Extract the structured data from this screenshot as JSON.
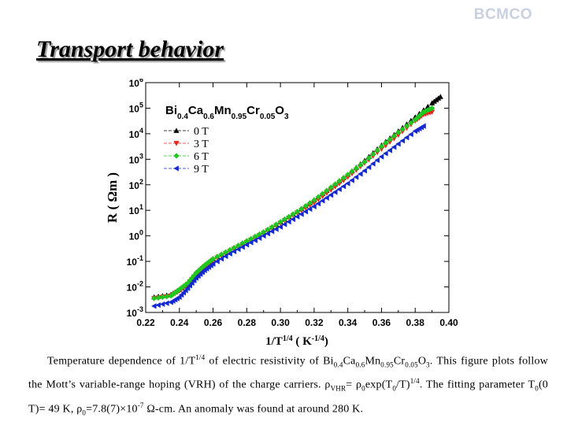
{
  "brand": "BCMCO",
  "slide_title": "Transport behavior",
  "caption": {
    "parts": [
      {
        "t": "Temperature dependence of 1/T"
      },
      {
        "t": "1/4",
        "f": "sup"
      },
      {
        "t": " of electric resistivity of Bi"
      },
      {
        "t": "0.4",
        "f": "sub"
      },
      {
        "t": "Ca"
      },
      {
        "t": "0.6",
        "f": "sub"
      },
      {
        "t": "Mn"
      },
      {
        "t": "0.95",
        "f": "sub"
      },
      {
        "t": "Cr"
      },
      {
        "t": "0.05",
        "f": "sub"
      },
      {
        "t": "O"
      },
      {
        "t": "3",
        "f": "sub"
      },
      {
        "t": ". This figure plots follow the Mott’s variable-range hoping (VRH) of the charge carriers. ρ"
      },
      {
        "t": "VHR",
        "f": "sub"
      },
      {
        "t": "= ρ"
      },
      {
        "t": "0",
        "f": "sub"
      },
      {
        "t": "exp(T"
      },
      {
        "t": "0",
        "f": "sub"
      },
      {
        "t": "/T)"
      },
      {
        "t": "1/4",
        "f": "sup"
      },
      {
        "t": ". The fitting parameter T"
      },
      {
        "t": "0",
        "f": "sub"
      },
      {
        "t": "(0 T)= 49 K, ρ"
      },
      {
        "t": "0",
        "f": "sub"
      },
      {
        "t": "=7.8(7)×10"
      },
      {
        "t": "-7",
        "f": "sup"
      },
      {
        "t": " Ω-cm. An anomaly was found at around 280 K."
      }
    ]
  },
  "chart_data": {
    "type": "scatter",
    "title_parts": [
      {
        "t": "Bi"
      },
      {
        "t": "0.4",
        "f": "sub"
      },
      {
        "t": "Ca"
      },
      {
        "t": "0.6",
        "f": "sub"
      },
      {
        "t": "Mn"
      },
      {
        "t": "0.95",
        "f": "sub"
      },
      {
        "t": "Cr"
      },
      {
        "t": "0.05",
        "f": "sub"
      },
      {
        "t": "O"
      },
      {
        "t": "3",
        "f": "sub"
      }
    ],
    "xlabel_parts": [
      {
        "t": "1/T"
      },
      {
        "t": "1/4",
        "f": "sup"
      },
      {
        "t": " ( K"
      },
      {
        "t": "-1/4",
        "f": "sup"
      },
      {
        "t": ")"
      }
    ],
    "ylabel_parts": [
      {
        "t": "R"
      },
      {
        "t": " ( "
      },
      {
        "t": "Ω"
      },
      {
        "t": "m"
      },
      {
        "t": " )"
      }
    ],
    "x_ticks": [
      "0.22",
      "0.24",
      "0.26",
      "0.28",
      "0.30",
      "0.32",
      "0.34",
      "0.36",
      "0.38",
      "0.40"
    ],
    "y_ticks": [
      {
        "base": "10",
        "exp": "-3"
      },
      {
        "base": "10",
        "exp": "-2"
      },
      {
        "base": "10",
        "exp": "-1"
      },
      {
        "base": "10",
        "exp": "0"
      },
      {
        "base": "10",
        "exp": "1"
      },
      {
        "base": "10",
        "exp": "2"
      },
      {
        "base": "10",
        "exp": "3"
      },
      {
        "base": "10",
        "exp": "4"
      },
      {
        "base": "10",
        "exp": "5"
      },
      {
        "base": "10",
        "exp": "6"
      }
    ],
    "xlim": [
      0.22,
      0.4
    ],
    "ylim_log10": [
      -3,
      6
    ],
    "y_scale": "log",
    "grid": false,
    "legend_position": "top-left",
    "series": [
      {
        "name": "0 T",
        "color": "#000000",
        "marker": "triangle-up",
        "x": [
          0.225,
          0.235,
          0.24,
          0.245,
          0.25,
          0.255,
          0.26,
          0.27,
          0.28,
          0.29,
          0.3,
          0.31,
          0.32,
          0.33,
          0.34,
          0.35,
          0.36,
          0.37,
          0.38,
          0.39,
          0.395
        ],
        "y": [
          -2.4,
          -2.3,
          -2.1,
          -1.85,
          -1.45,
          -1.15,
          -0.9,
          -0.55,
          -0.2,
          0.15,
          0.55,
          0.95,
          1.4,
          1.9,
          2.4,
          2.95,
          3.55,
          4.1,
          4.65,
          5.2,
          5.45
        ]
      },
      {
        "name": "3 T",
        "color": "#e8241c",
        "marker": "triangle-down",
        "x": [
          0.225,
          0.235,
          0.24,
          0.245,
          0.25,
          0.255,
          0.26,
          0.27,
          0.28,
          0.29,
          0.3,
          0.31,
          0.32,
          0.33,
          0.34,
          0.35,
          0.36,
          0.37,
          0.38,
          0.385,
          0.39
        ],
        "y": [
          -2.45,
          -2.35,
          -2.15,
          -1.9,
          -1.5,
          -1.2,
          -0.95,
          -0.6,
          -0.25,
          0.1,
          0.5,
          0.9,
          1.3,
          1.8,
          2.3,
          2.85,
          3.4,
          3.95,
          4.5,
          4.75,
          4.85
        ]
      },
      {
        "name": "6 T",
        "color": "#1ec81e",
        "marker": "diamond",
        "x": [
          0.225,
          0.235,
          0.24,
          0.245,
          0.25,
          0.255,
          0.26,
          0.27,
          0.28,
          0.29,
          0.3,
          0.31,
          0.32,
          0.33,
          0.34,
          0.35,
          0.36,
          0.37,
          0.38,
          0.385,
          0.39
        ],
        "y": [
          -2.45,
          -2.35,
          -2.1,
          -1.85,
          -1.45,
          -1.15,
          -0.9,
          -0.55,
          -0.2,
          0.15,
          0.55,
          0.95,
          1.4,
          1.9,
          2.4,
          2.9,
          3.5,
          4.05,
          4.55,
          4.85,
          5.0
        ]
      },
      {
        "name": "9 T",
        "color": "#1428d2",
        "marker": "triangle-left",
        "x": [
          0.225,
          0.235,
          0.24,
          0.245,
          0.25,
          0.255,
          0.26,
          0.27,
          0.28,
          0.29,
          0.3,
          0.31,
          0.32,
          0.33,
          0.34,
          0.35,
          0.36,
          0.37,
          0.38,
          0.385
        ],
        "y": [
          -2.75,
          -2.6,
          -2.4,
          -2.05,
          -1.65,
          -1.35,
          -1.1,
          -0.7,
          -0.35,
          0.0,
          0.35,
          0.75,
          1.15,
          1.6,
          2.05,
          2.55,
          3.1,
          3.6,
          4.1,
          4.3
        ]
      }
    ]
  }
}
